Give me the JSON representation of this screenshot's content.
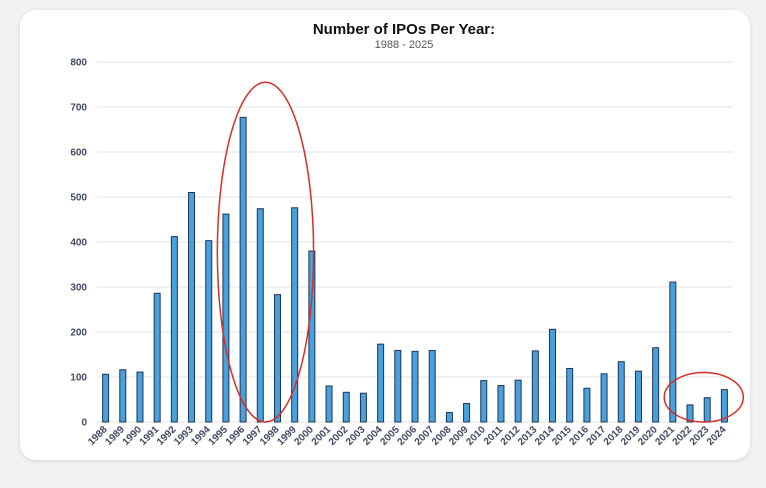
{
  "chart_data": {
    "type": "bar",
    "title": "Number of IPOs Per Year:",
    "subtitle": "1988 - 2025",
    "xlabel": "",
    "ylabel": "",
    "ylim": [
      0,
      800
    ],
    "yticks": [
      0,
      100,
      200,
      300,
      400,
      500,
      600,
      700,
      800
    ],
    "grid": true,
    "categories": [
      "1988",
      "1989",
      "1990",
      "1991",
      "1992",
      "1993",
      "1994",
      "1995",
      "1996",
      "1997",
      "1998",
      "1999",
      "2000",
      "2001",
      "2002",
      "2003",
      "2004",
      "2005",
      "2006",
      "2007",
      "2008",
      "2009",
      "2010",
      "2011",
      "2012",
      "2013",
      "2014",
      "2015",
      "2016",
      "2017",
      "2018",
      "2019",
      "2020",
      "2021",
      "2022",
      "2023",
      "2024"
    ],
    "values": [
      106,
      116,
      111,
      286,
      412,
      510,
      403,
      462,
      677,
      474,
      283,
      476,
      380,
      80,
      66,
      64,
      173,
      159,
      157,
      159,
      21,
      41,
      92,
      81,
      93,
      158,
      206,
      119,
      75,
      107,
      134,
      113,
      165,
      311,
      38,
      54,
      72
    ],
    "colors": {
      "bar": "#4aa0dc",
      "bar_outline": "#1e3550",
      "highlight": "#d62f2a"
    },
    "annotations": [
      {
        "type": "ellipse",
        "category_range": [
          "1996",
          "1999"
        ],
        "y_range": [
          0,
          755
        ]
      },
      {
        "type": "ellipse",
        "category_range": [
          "2022",
          "2024"
        ],
        "y_range": [
          0,
          110
        ]
      }
    ]
  }
}
